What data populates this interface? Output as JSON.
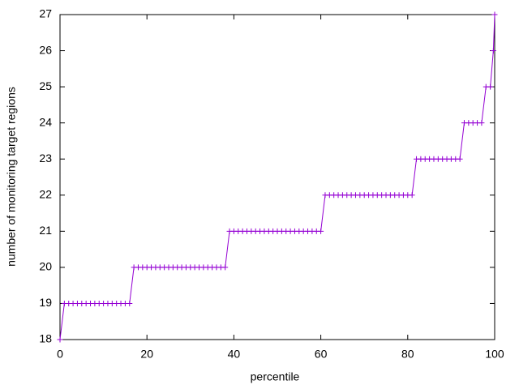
{
  "chart_data": {
    "type": "line",
    "xlabel": "percentile",
    "ylabel": "number of monitoring target regions",
    "x": [
      0,
      1,
      2,
      3,
      4,
      5,
      6,
      7,
      8,
      9,
      10,
      11,
      12,
      13,
      14,
      15,
      16,
      17,
      18,
      19,
      20,
      21,
      22,
      23,
      24,
      25,
      26,
      27,
      28,
      29,
      30,
      31,
      32,
      33,
      34,
      35,
      36,
      37,
      38,
      39,
      40,
      41,
      42,
      43,
      44,
      45,
      46,
      47,
      48,
      49,
      50,
      51,
      52,
      53,
      54,
      55,
      56,
      57,
      58,
      59,
      60,
      61,
      62,
      63,
      64,
      65,
      66,
      67,
      68,
      69,
      70,
      71,
      72,
      73,
      74,
      75,
      76,
      77,
      78,
      79,
      80,
      81,
      82,
      83,
      84,
      85,
      86,
      87,
      88,
      89,
      90,
      91,
      92,
      93,
      94,
      95,
      96,
      97,
      98,
      99,
      99.7,
      100
    ],
    "series": [
      {
        "color": "#9400d3",
        "marker": "+",
        "values": [
          18,
          19,
          19,
          19,
          19,
          19,
          19,
          19,
          19,
          19,
          19,
          19,
          19,
          19,
          19,
          19,
          19,
          20,
          20,
          20,
          20,
          20,
          20,
          20,
          20,
          20,
          20,
          20,
          20,
          20,
          20,
          20,
          20,
          20,
          20,
          20,
          20,
          20,
          20,
          21,
          21,
          21,
          21,
          21,
          21,
          21,
          21,
          21,
          21,
          21,
          21,
          21,
          21,
          21,
          21,
          21,
          21,
          21,
          21,
          21,
          21,
          22,
          22,
          22,
          22,
          22,
          22,
          22,
          22,
          22,
          22,
          22,
          22,
          22,
          22,
          22,
          22,
          22,
          22,
          22,
          22,
          22,
          23,
          23,
          23,
          23,
          23,
          23,
          23,
          23,
          23,
          23,
          23,
          24,
          24,
          24,
          24,
          24,
          25,
          25,
          26,
          27
        ]
      }
    ],
    "xlim": [
      0,
      100
    ],
    "xticks": [
      0,
      20,
      40,
      60,
      80,
      100
    ],
    "ylim": [
      18,
      27
    ],
    "yticks": [
      18,
      19,
      20,
      21,
      22,
      23,
      24,
      25,
      26,
      27
    ]
  }
}
